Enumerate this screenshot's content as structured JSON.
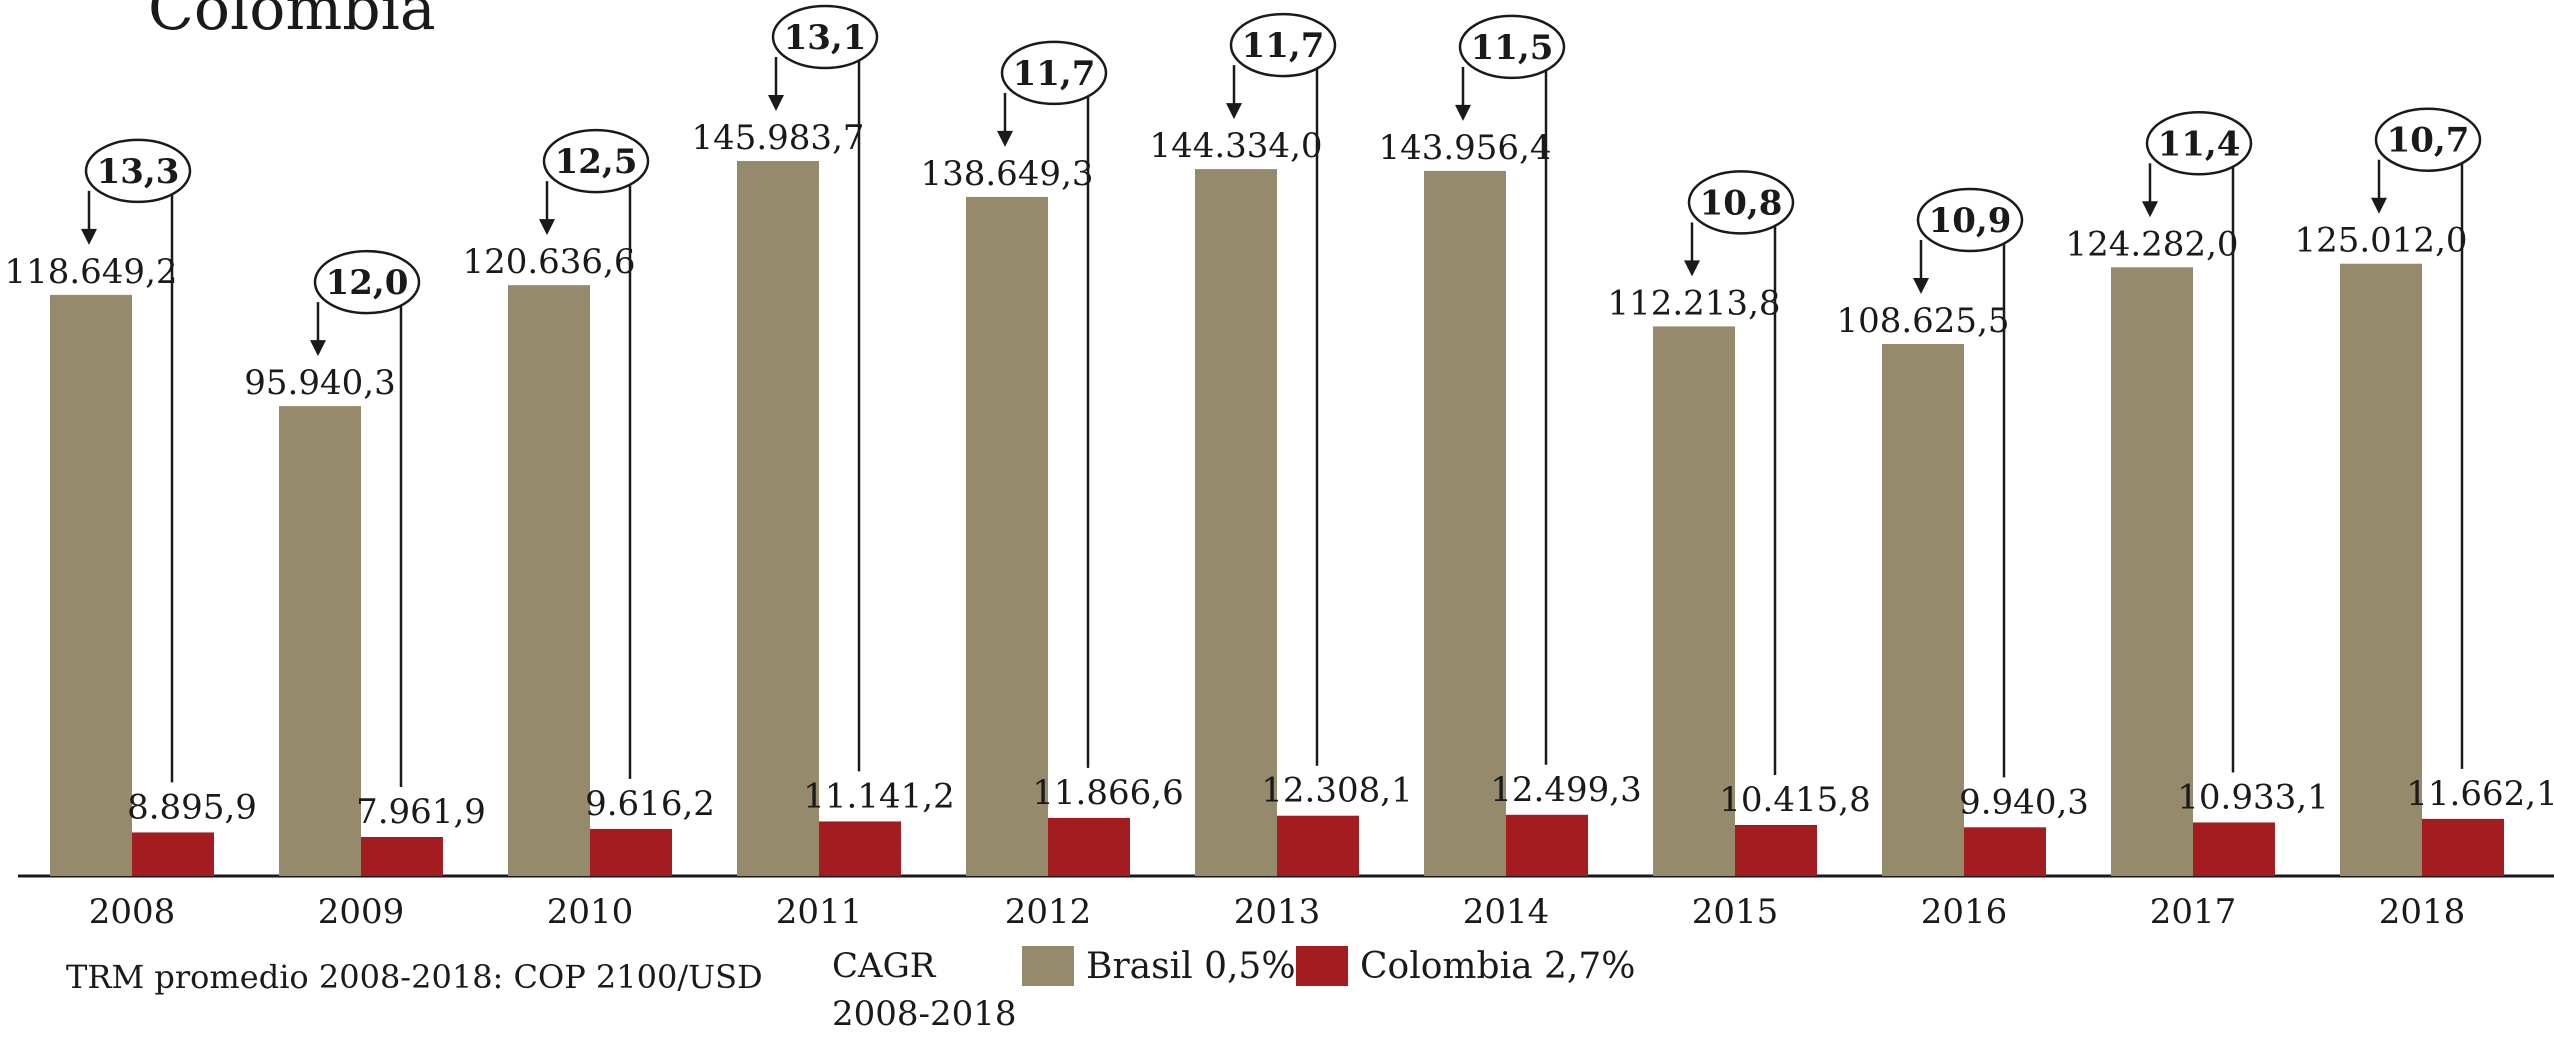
{
  "title": "Colombia",
  "note": "TRM promedio 2008-2018: COP 2100/USD",
  "cagr_label": "CAGR 2008-2018",
  "colors": {
    "brasil": "#958a6b",
    "colombia": "#a31c1f",
    "axis": "#1a1a1a"
  },
  "chart_data": {
    "type": "bar",
    "categories": [
      "2008",
      "2009",
      "2010",
      "2011",
      "2012",
      "2013",
      "2014",
      "2015",
      "2016",
      "2017",
      "2018"
    ],
    "series": [
      {
        "name": "Brasil 0,5%",
        "values": [
          118649.2,
          95940.3,
          120636.6,
          145983.7,
          138649.3,
          144334.0,
          143956.4,
          112213.8,
          108625.5,
          124282.0,
          125012.0
        ],
        "labels": [
          "118.649,2",
          "95.940,3",
          "120.636,6",
          "145.983,7",
          "138.649,3",
          "144.334,0",
          "143.956,4",
          "112.213,8",
          "108.625,5",
          "124.282,0",
          "125.012,0"
        ]
      },
      {
        "name": "Colombia 2,7%",
        "values": [
          8895.9,
          7961.9,
          9616.2,
          11141.2,
          11866.6,
          12308.1,
          12499.3,
          10415.8,
          9940.3,
          10933.1,
          11662.1
        ],
        "labels": [
          "8.895,9",
          "7.961,9",
          "9.616,2",
          "11.141,2",
          "11.866,6",
          "12.308,1",
          "12.499,3",
          "10.415,8",
          "9.940,3",
          "10.933,1",
          "11.662,1"
        ]
      }
    ],
    "ratios": [
      "13,3",
      "12,0",
      "12,5",
      "13,1",
      "11,7",
      "11,7",
      "11,5",
      "10,8",
      "10,9",
      "11,4",
      "10,7"
    ],
    "ylim": [
      0,
      160000
    ],
    "grid": false,
    "legend": "bottom"
  }
}
